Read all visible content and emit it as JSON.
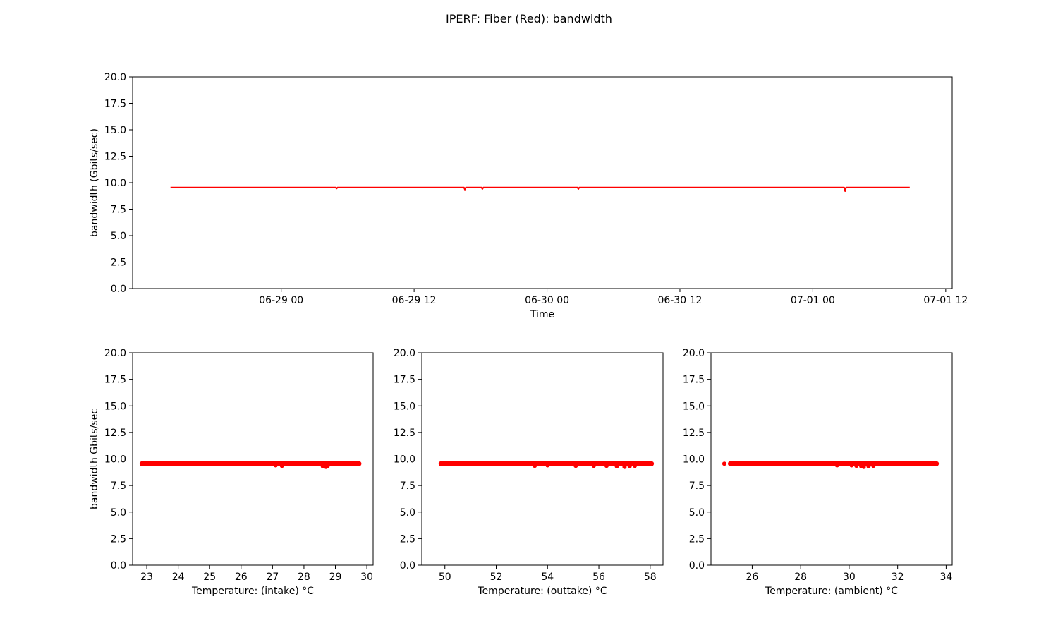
{
  "figure": {
    "title": "IPERF: Fiber (Red): bandwidth",
    "series_color": "#ff0000",
    "background": "#ffffff"
  },
  "chart_data": [
    {
      "type": "line",
      "title": "",
      "xlabel": "Time",
      "ylabel": "bandwidth (Gbits/sec)",
      "ylim": [
        0,
        20
      ],
      "yticks": [
        0.0,
        2.5,
        5.0,
        7.5,
        10.0,
        12.5,
        15.0,
        17.5,
        20.0
      ],
      "ytick_labels": [
        "0.0",
        "2.5",
        "5.0",
        "7.5",
        "10.0",
        "12.5",
        "15.0",
        "17.5",
        "20.0"
      ],
      "xlim": [
        "2023-06-28 10:35",
        "2023-07-01 12:35"
      ],
      "xticks": [
        "2023-06-29 00:00",
        "2023-06-29 12:00",
        "2023-06-30 00:00",
        "2023-06-30 12:00",
        "2023-07-01 00:00",
        "2023-07-01 12:00"
      ],
      "xtick_labels": [
        "06-29 00",
        "06-29 12",
        "06-30 00",
        "06-30 12",
        "07-01 00",
        "07-01 12"
      ],
      "grid": false,
      "series": [
        {
          "x": [
            "2023-06-28 14:00",
            "2023-06-29 04:55",
            "2023-06-29 05:00",
            "2023-06-29 05:05",
            "2023-06-29 16:30",
            "2023-06-29 16:35",
            "2023-06-29 16:40",
            "2023-06-29 18:05",
            "2023-06-29 18:10",
            "2023-06-29 18:15",
            "2023-06-30 02:45",
            "2023-06-30 02:50",
            "2023-06-30 02:55",
            "2023-07-01 02:50",
            "2023-07-01 02:55",
            "2023-07-01 03:00",
            "2023-07-01 08:45"
          ],
          "y": [
            9.55,
            9.55,
            9.45,
            9.55,
            9.55,
            9.35,
            9.55,
            9.55,
            9.4,
            9.55,
            9.55,
            9.4,
            9.55,
            9.55,
            9.2,
            9.55,
            9.55
          ]
        }
      ]
    },
    {
      "type": "scatter",
      "title": "",
      "xlabel": "Temperature: (intake) °C",
      "ylabel": "bandwidth Gbits/sec",
      "xlim": [
        22.55,
        30.2
      ],
      "ylim": [
        0,
        20
      ],
      "xticks": [
        23,
        24,
        25,
        26,
        27,
        28,
        29,
        30
      ],
      "xtick_labels": [
        "23",
        "24",
        "25",
        "26",
        "27",
        "28",
        "29",
        "30"
      ],
      "yticks": [
        0.0,
        2.5,
        5.0,
        7.5,
        10.0,
        12.5,
        15.0,
        17.5,
        20.0
      ],
      "ytick_labels": [
        "0.0",
        "2.5",
        "5.0",
        "7.5",
        "10.0",
        "12.5",
        "15.0",
        "17.5",
        "20.0"
      ],
      "grid": false,
      "band": {
        "x_range": [
          22.85,
          29.75
        ],
        "y": 9.55
      },
      "outliers": {
        "x": [
          27.1,
          27.3,
          28.6,
          28.7,
          28.75
        ],
        "y": [
          9.4,
          9.35,
          9.3,
          9.25,
          9.3
        ]
      }
    },
    {
      "type": "scatter",
      "title": "",
      "xlabel": "Temperature: (outtake) °C",
      "ylabel": "",
      "xlim": [
        49.1,
        58.5
      ],
      "ylim": [
        0,
        20
      ],
      "xticks": [
        50,
        52,
        54,
        56,
        58
      ],
      "xtick_labels": [
        "50",
        "52",
        "54",
        "56",
        "58"
      ],
      "yticks": [
        0.0,
        2.5,
        5.0,
        7.5,
        10.0,
        12.5,
        15.0,
        17.5,
        20.0
      ],
      "ytick_labels": [
        "0.0",
        "2.5",
        "5.0",
        "7.5",
        "10.0",
        "12.5",
        "15.0",
        "17.5",
        "20.0"
      ],
      "grid": false,
      "band": {
        "x_range": [
          49.85,
          58.05
        ],
        "y": 9.55
      },
      "outliers": {
        "x": [
          53.5,
          54.0,
          55.1,
          55.8,
          56.3,
          56.7,
          57.0,
          57.2,
          57.4
        ],
        "y": [
          9.35,
          9.4,
          9.35,
          9.35,
          9.35,
          9.3,
          9.25,
          9.3,
          9.35
        ]
      }
    },
    {
      "type": "scatter",
      "title": "",
      "xlabel": "Temperature: (ambient) °C",
      "ylabel": "",
      "xlim": [
        24.3,
        34.25
      ],
      "ylim": [
        0,
        20
      ],
      "xticks": [
        26,
        28,
        30,
        32,
        34
      ],
      "xtick_labels": [
        "26",
        "28",
        "30",
        "32",
        "34"
      ],
      "yticks": [
        0.0,
        2.5,
        5.0,
        7.5,
        10.0,
        12.5,
        15.0,
        17.5,
        20.0
      ],
      "ytick_labels": [
        "0.0",
        "2.5",
        "5.0",
        "7.5",
        "10.0",
        "12.5",
        "15.0",
        "17.5",
        "20.0"
      ],
      "grid": false,
      "band": {
        "x_range": [
          25.1,
          33.6
        ],
        "y": 9.55
      },
      "outliers": {
        "x": [
          24.85,
          29.5,
          30.1,
          30.3,
          30.5,
          30.6,
          30.8,
          31.0
        ],
        "y": [
          9.55,
          9.4,
          9.4,
          9.35,
          9.3,
          9.25,
          9.3,
          9.35
        ]
      }
    }
  ]
}
